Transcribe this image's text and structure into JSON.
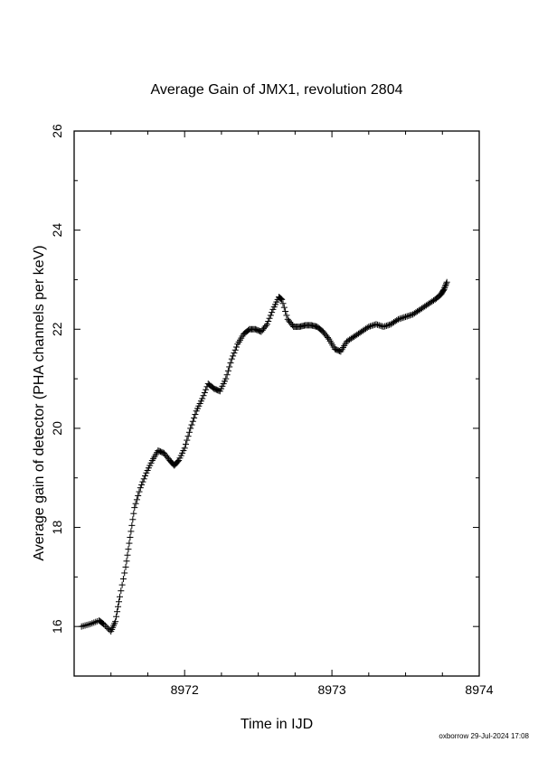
{
  "chart_data": {
    "type": "scatter",
    "title": "Average Gain of JMX1, revolution 2804",
    "xlabel": "Time in IJD",
    "ylabel": "Average gain of detector (PHA channels per keV)",
    "xlim": [
      8971.25,
      8974
    ],
    "ylim": [
      15,
      26
    ],
    "xticks": [
      {
        "value": 8972,
        "label": "8972"
      },
      {
        "value": 8973,
        "label": "8973"
      },
      {
        "value": 8974,
        "label": "8974"
      }
    ],
    "yticks": [
      {
        "value": 16,
        "label": "16"
      },
      {
        "value": 18,
        "label": "18"
      },
      {
        "value": 20,
        "label": "20"
      },
      {
        "value": 22,
        "label": "22"
      },
      {
        "value": 24,
        "label": "24"
      },
      {
        "value": 26,
        "label": "26"
      }
    ],
    "marker": "plus",
    "grid": false,
    "color": "#000000",
    "series": [
      {
        "x": [
          8971.3,
          8971.36,
          8971.42,
          8971.45,
          8971.5,
          8971.53,
          8971.56,
          8971.6,
          8971.63,
          8971.66,
          8971.7,
          8971.74,
          8971.78,
          8971.82,
          8971.86,
          8971.9,
          8971.93,
          8971.96,
          8972.0,
          8972.04,
          8972.08,
          8972.12,
          8972.16,
          8972.2,
          8972.24,
          8972.28,
          8972.32,
          8972.36,
          8972.4,
          8972.44,
          8972.48,
          8972.52,
          8972.56,
          8972.6,
          8972.64,
          8972.66,
          8972.7,
          8972.74,
          8972.78,
          8972.82,
          8972.86,
          8972.9,
          8972.94,
          8972.98,
          8973.02,
          8973.06,
          8973.1,
          8973.15,
          8973.2,
          8973.25,
          8973.3,
          8973.35,
          8973.4,
          8973.45,
          8973.5,
          8973.55,
          8973.6,
          8973.65,
          8973.7,
          8973.74,
          8973.76,
          8973.78
        ],
        "y": [
          16.0,
          16.05,
          16.12,
          16.05,
          15.9,
          16.1,
          16.6,
          17.2,
          17.8,
          18.4,
          18.8,
          19.1,
          19.35,
          19.55,
          19.5,
          19.35,
          19.25,
          19.35,
          19.6,
          20.0,
          20.35,
          20.6,
          20.9,
          20.8,
          20.75,
          21.0,
          21.4,
          21.7,
          21.9,
          22.0,
          22.0,
          21.95,
          22.1,
          22.4,
          22.65,
          22.6,
          22.2,
          22.05,
          22.05,
          22.08,
          22.08,
          22.05,
          21.95,
          21.8,
          21.6,
          21.55,
          21.75,
          21.85,
          21.95,
          22.05,
          22.1,
          22.05,
          22.1,
          22.2,
          22.25,
          22.3,
          22.4,
          22.5,
          22.6,
          22.7,
          22.8,
          22.95
        ]
      }
    ]
  },
  "footer": "oxborrow 29-Jul-2024 17:08"
}
